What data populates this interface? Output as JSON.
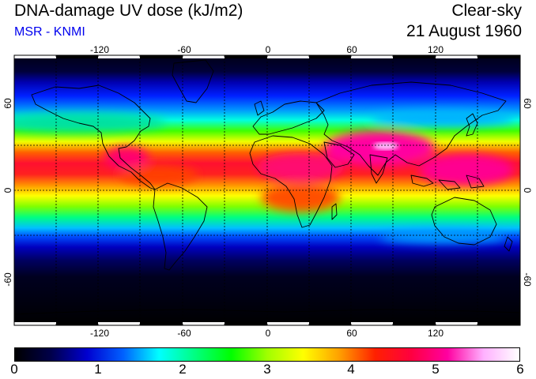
{
  "header": {
    "title": "DNA-damage UV dose (kJ/m2)",
    "subtitle": "MSR - KNMI",
    "mode": "Clear-sky",
    "date": "21 August 1960"
  },
  "map": {
    "lon_ticks": [
      "-120",
      "-60",
      "0",
      "60",
      "120"
    ],
    "lat_ticks": [
      "60",
      "0",
      "-60"
    ],
    "lon_range": [
      -180,
      180
    ],
    "lat_range": [
      -90,
      90
    ]
  },
  "colorbar": {
    "labels": [
      "0",
      "1",
      "2",
      "3",
      "4",
      "5",
      "6"
    ],
    "range": [
      0,
      6
    ],
    "colors": [
      "#000000",
      "#00004a",
      "#0000d0",
      "#0060ff",
      "#00ffff",
      "#00ff80",
      "#00ff00",
      "#a0ff00",
      "#ffff00",
      "#ffa000",
      "#ff2000",
      "#ff0040",
      "#ff00a0",
      "#ffb0ff",
      "#ffffff"
    ]
  }
}
